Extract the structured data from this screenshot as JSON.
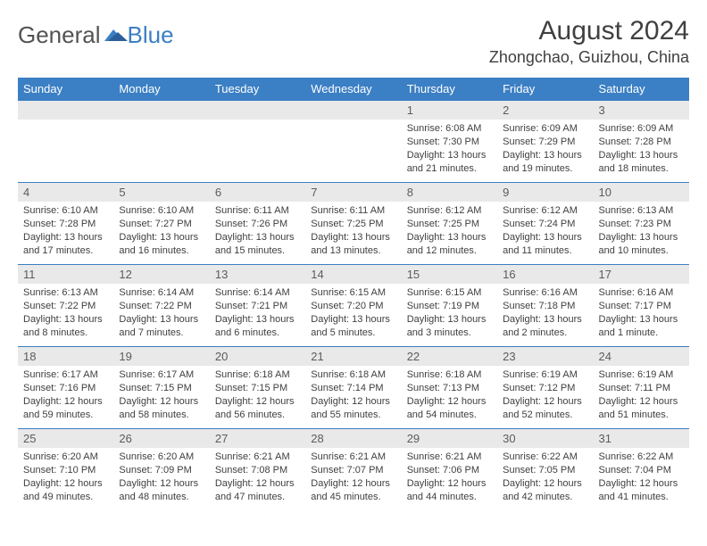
{
  "brand": {
    "part1": "General",
    "part2": "Blue"
  },
  "title": "August 2024",
  "location": "Zhongchao, Guizhou, China",
  "colors": {
    "headerBg": "#3b7fc4",
    "headerFg": "#ffffff",
    "dayNumBg": "#e9e9e9",
    "borderColor": "#3b7fc4",
    "textColor": "#404040"
  },
  "weekdays": [
    "Sunday",
    "Monday",
    "Tuesday",
    "Wednesday",
    "Thursday",
    "Friday",
    "Saturday"
  ],
  "weeks": [
    [
      null,
      null,
      null,
      null,
      {
        "n": "1",
        "sunrise": "6:08 AM",
        "sunset": "7:30 PM",
        "daylight": "13 hours and 21 minutes."
      },
      {
        "n": "2",
        "sunrise": "6:09 AM",
        "sunset": "7:29 PM",
        "daylight": "13 hours and 19 minutes."
      },
      {
        "n": "3",
        "sunrise": "6:09 AM",
        "sunset": "7:28 PM",
        "daylight": "13 hours and 18 minutes."
      }
    ],
    [
      {
        "n": "4",
        "sunrise": "6:10 AM",
        "sunset": "7:28 PM",
        "daylight": "13 hours and 17 minutes."
      },
      {
        "n": "5",
        "sunrise": "6:10 AM",
        "sunset": "7:27 PM",
        "daylight": "13 hours and 16 minutes."
      },
      {
        "n": "6",
        "sunrise": "6:11 AM",
        "sunset": "7:26 PM",
        "daylight": "13 hours and 15 minutes."
      },
      {
        "n": "7",
        "sunrise": "6:11 AM",
        "sunset": "7:25 PM",
        "daylight": "13 hours and 13 minutes."
      },
      {
        "n": "8",
        "sunrise": "6:12 AM",
        "sunset": "7:25 PM",
        "daylight": "13 hours and 12 minutes."
      },
      {
        "n": "9",
        "sunrise": "6:12 AM",
        "sunset": "7:24 PM",
        "daylight": "13 hours and 11 minutes."
      },
      {
        "n": "10",
        "sunrise": "6:13 AM",
        "sunset": "7:23 PM",
        "daylight": "13 hours and 10 minutes."
      }
    ],
    [
      {
        "n": "11",
        "sunrise": "6:13 AM",
        "sunset": "7:22 PM",
        "daylight": "13 hours and 8 minutes."
      },
      {
        "n": "12",
        "sunrise": "6:14 AM",
        "sunset": "7:22 PM",
        "daylight": "13 hours and 7 minutes."
      },
      {
        "n": "13",
        "sunrise": "6:14 AM",
        "sunset": "7:21 PM",
        "daylight": "13 hours and 6 minutes."
      },
      {
        "n": "14",
        "sunrise": "6:15 AM",
        "sunset": "7:20 PM",
        "daylight": "13 hours and 5 minutes."
      },
      {
        "n": "15",
        "sunrise": "6:15 AM",
        "sunset": "7:19 PM",
        "daylight": "13 hours and 3 minutes."
      },
      {
        "n": "16",
        "sunrise": "6:16 AM",
        "sunset": "7:18 PM",
        "daylight": "13 hours and 2 minutes."
      },
      {
        "n": "17",
        "sunrise": "6:16 AM",
        "sunset": "7:17 PM",
        "daylight": "13 hours and 1 minute."
      }
    ],
    [
      {
        "n": "18",
        "sunrise": "6:17 AM",
        "sunset": "7:16 PM",
        "daylight": "12 hours and 59 minutes."
      },
      {
        "n": "19",
        "sunrise": "6:17 AM",
        "sunset": "7:15 PM",
        "daylight": "12 hours and 58 minutes."
      },
      {
        "n": "20",
        "sunrise": "6:18 AM",
        "sunset": "7:15 PM",
        "daylight": "12 hours and 56 minutes."
      },
      {
        "n": "21",
        "sunrise": "6:18 AM",
        "sunset": "7:14 PM",
        "daylight": "12 hours and 55 minutes."
      },
      {
        "n": "22",
        "sunrise": "6:18 AM",
        "sunset": "7:13 PM",
        "daylight": "12 hours and 54 minutes."
      },
      {
        "n": "23",
        "sunrise": "6:19 AM",
        "sunset": "7:12 PM",
        "daylight": "12 hours and 52 minutes."
      },
      {
        "n": "24",
        "sunrise": "6:19 AM",
        "sunset": "7:11 PM",
        "daylight": "12 hours and 51 minutes."
      }
    ],
    [
      {
        "n": "25",
        "sunrise": "6:20 AM",
        "sunset": "7:10 PM",
        "daylight": "12 hours and 49 minutes."
      },
      {
        "n": "26",
        "sunrise": "6:20 AM",
        "sunset": "7:09 PM",
        "daylight": "12 hours and 48 minutes."
      },
      {
        "n": "27",
        "sunrise": "6:21 AM",
        "sunset": "7:08 PM",
        "daylight": "12 hours and 47 minutes."
      },
      {
        "n": "28",
        "sunrise": "6:21 AM",
        "sunset": "7:07 PM",
        "daylight": "12 hours and 45 minutes."
      },
      {
        "n": "29",
        "sunrise": "6:21 AM",
        "sunset": "7:06 PM",
        "daylight": "12 hours and 44 minutes."
      },
      {
        "n": "30",
        "sunrise": "6:22 AM",
        "sunset": "7:05 PM",
        "daylight": "12 hours and 42 minutes."
      },
      {
        "n": "31",
        "sunrise": "6:22 AM",
        "sunset": "7:04 PM",
        "daylight": "12 hours and 41 minutes."
      }
    ]
  ],
  "labels": {
    "sunrise": "Sunrise:",
    "sunset": "Sunset:",
    "daylight": "Daylight:"
  }
}
